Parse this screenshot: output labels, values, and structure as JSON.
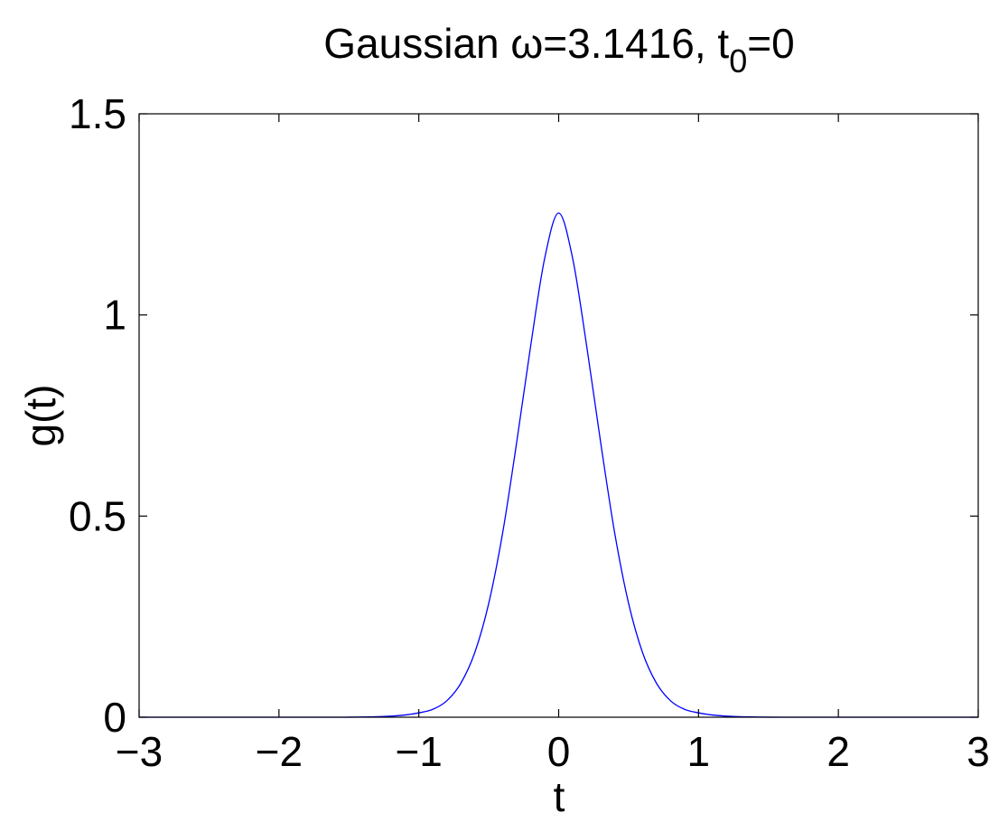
{
  "chart_data": {
    "type": "line",
    "title": {
      "prefix": "Gaussian ω=3.1416, t",
      "subscript": "0",
      "suffix": "=0"
    },
    "xlabel": "t",
    "ylabel": "g(t)",
    "xlim": [
      -3,
      3
    ],
    "ylim": [
      0,
      1.5
    ],
    "xticks": [
      -3,
      -2,
      -1,
      0,
      1,
      2,
      3
    ],
    "xtick_labels": [
      "−3",
      "−2",
      "−1",
      "0",
      "1",
      "2",
      "3"
    ],
    "yticks": [
      0,
      0.5,
      1,
      1.5
    ],
    "ytick_labels": [
      "0",
      "0.5",
      "1",
      "1.5"
    ],
    "grid": false,
    "series": [
      {
        "color": "#0000ff",
        "x": [
          -3,
          -2.75,
          -2.5,
          -2.25,
          -2,
          -1.75,
          -1.5,
          -1.25,
          -1.1,
          -1,
          -0.9,
          -0.8,
          -0.7,
          -0.6,
          -0.5,
          -0.4,
          -0.3,
          -0.2,
          -0.1,
          0,
          0.1,
          0.2,
          0.3,
          0.4,
          0.5,
          0.6,
          0.7,
          0.8,
          0.9,
          1,
          1.1,
          1.25,
          1.5,
          1.75,
          2,
          2.25,
          2.5,
          2.75,
          3
        ],
        "y": [
          0,
          0,
          0,
          0,
          0,
          0,
          0.0001,
          0.0018,
          0.0055,
          0.0108,
          0.0196,
          0.0409,
          0.0842,
          0.1606,
          0.2831,
          0.4592,
          0.6838,
          0.9234,
          1.1407,
          1.2533,
          1.1407,
          0.9234,
          0.6838,
          0.4592,
          0.2831,
          0.1606,
          0.0842,
          0.0409,
          0.0196,
          0.0108,
          0.0055,
          0.0018,
          0.0001,
          0,
          0,
          0,
          0,
          0,
          0
        ]
      }
    ]
  }
}
